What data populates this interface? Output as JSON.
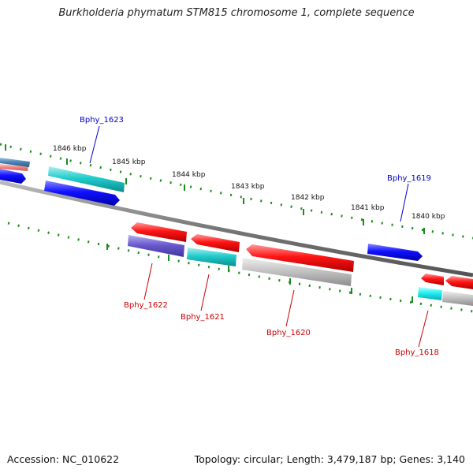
{
  "title": "Burkholderia phymatum STM815 chromosome 1, complete sequence",
  "footer": {
    "accession": "Accession: NC_010622",
    "summary": "Topology: circular; Length: 3,479,187 bp; Genes: 3,140"
  },
  "colors": {
    "backbone": "#808080",
    "tick": "#1c8a1c",
    "forward_label": "#0000cc",
    "reverse_label": "#cc0000"
  },
  "scale_labels": [
    "1846 kbp",
    "1845 kbp",
    "1844 kbp",
    "1843 kbp",
    "1842 kbp",
    "1841 kbp",
    "1840 kbp"
  ],
  "gene_labels": {
    "forward": [
      "Bphy_1623",
      "Bphy_1619"
    ],
    "reverse": [
      "Bphy_1622",
      "Bphy_1621",
      "Bphy_1620",
      "Bphy_1618"
    ]
  }
}
